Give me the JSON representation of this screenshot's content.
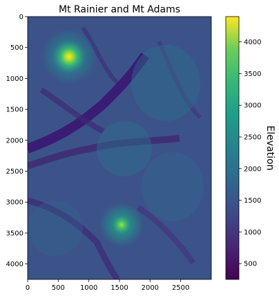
{
  "chart_data": {
    "type": "heatmap",
    "title": "Mt Rainier and Mt Adams",
    "xlabel": "",
    "ylabel": "",
    "x_range": [
      0,
      3000
    ],
    "y_range": [
      4250,
      0
    ],
    "x_ticks": [
      "0",
      "500",
      "1000",
      "1500",
      "2000",
      "2500"
    ],
    "y_ticks": [
      "0",
      "500",
      "1000",
      "1500",
      "2000",
      "2500",
      "3000",
      "3500",
      "4000"
    ],
    "colorbar": {
      "label": "Elevation",
      "range": [
        250,
        4400
      ],
      "ticks": [
        "500",
        "1000",
        "1500",
        "2000",
        "2500",
        "3000",
        "3500",
        "4000"
      ],
      "colormap": "viridis"
    },
    "peaks": [
      {
        "name": "Mt Rainier",
        "x": 680,
        "y": 650,
        "elevation": 4390
      },
      {
        "name": "Mt Adams",
        "x": 1530,
        "y": 3370,
        "elevation": 3740
      }
    ],
    "grid": false
  }
}
